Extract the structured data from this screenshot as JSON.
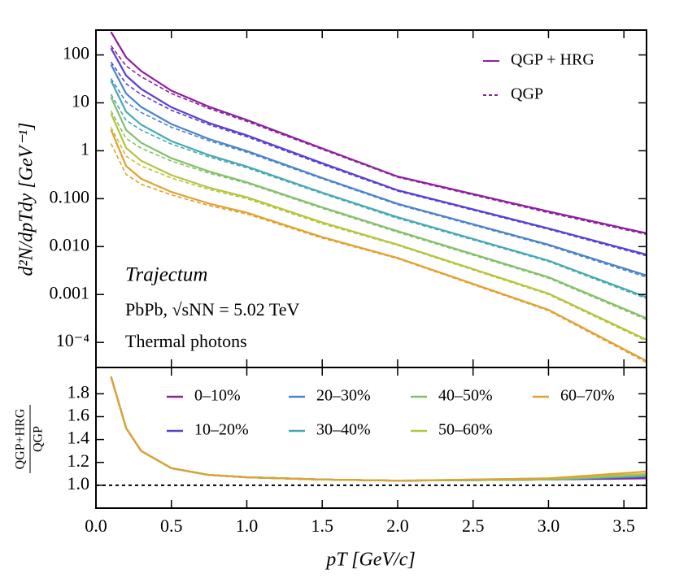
{
  "chart_data": [
    {
      "type": "line",
      "log_y": true,
      "ylabel": "d²N/dpTdy [GeV⁻¹]",
      "annotations": [
        "Trajectum",
        "PbPb, √sNN = 5.02 TeV",
        "Thermal photons"
      ],
      "style_legend": [
        "QGP + HRG",
        "QGP"
      ],
      "x": [
        0.1,
        0.2,
        0.3,
        0.5,
        0.75,
        1.0,
        1.5,
        2.0,
        3.0,
        3.65
      ],
      "xlim": [
        0,
        3.65
      ],
      "xticks": [
        0,
        0.5,
        1,
        1.5,
        2,
        2.5,
        3,
        3.5
      ],
      "show_x_tick_labels": false,
      "ylim": [
        3e-05,
        330
      ],
      "yticks": [
        {
          "value": 0.0001,
          "label": "10⁻⁴"
        },
        0.001,
        {
          "value": 0.01,
          "label": "0.010"
        },
        {
          "value": 0.1,
          "label": "0.100"
        },
        1,
        10,
        100
      ],
      "series": [
        {
          "color": "#8e1f9e",
          "values": [
            302,
            89,
            46,
            18,
            8.3,
            4.4,
            1.12,
            0.29,
            0.054,
            0.019
          ],
          "qgp_values": [
            155,
            59,
            35,
            15.7,
            7.6,
            4.1,
            1.07,
            0.28,
            0.051,
            0.018
          ]
        },
        {
          "color": "#5b3fd2",
          "values": [
            138,
            37,
            19.4,
            8.1,
            3.8,
            2.1,
            0.55,
            0.15,
            0.024,
            0.0068
          ],
          "qgp_values": [
            71,
            25,
            14.9,
            7.0,
            3.5,
            1.96,
            0.52,
            0.144,
            0.023,
            0.0064
          ]
        },
        {
          "color": "#4a84c8",
          "values": [
            63,
            15.6,
            8.2,
            3.6,
            1.76,
            0.99,
            0.27,
            0.078,
            0.011,
            0.0025
          ],
          "qgp_values": [
            32,
            10.4,
            6.3,
            3.1,
            1.61,
            0.93,
            0.26,
            0.075,
            0.0105,
            0.0023
          ]
        },
        {
          "color": "#46aab0",
          "values": [
            29,
            6.5,
            3.5,
            1.59,
            0.81,
            0.47,
            0.134,
            0.041,
            0.0051,
            0.00088
          ],
          "qgp_values": [
            15,
            4.3,
            2.7,
            1.38,
            0.74,
            0.44,
            0.128,
            0.039,
            0.0049,
            0.00082
          ]
        },
        {
          "color": "#84c06a",
          "values": [
            13.2,
            2.7,
            1.47,
            0.7,
            0.37,
            0.22,
            0.066,
            0.021,
            0.0023,
            0.00032
          ],
          "qgp_values": [
            6.8,
            1.8,
            1.13,
            0.61,
            0.34,
            0.21,
            0.063,
            0.02,
            0.0022,
            0.0003
          ]
        },
        {
          "color": "#b6c43e",
          "values": [
            6.0,
            1.15,
            0.62,
            0.31,
            0.17,
            0.107,
            0.032,
            0.011,
            0.00105,
            0.000114
          ],
          "qgp_values": [
            3.1,
            0.77,
            0.48,
            0.27,
            0.156,
            0.1,
            0.03,
            0.0106,
            0.001,
            0.000107
          ]
        },
        {
          "color": "#e0a232",
          "values": [
            2.75,
            0.48,
            0.26,
            0.138,
            0.079,
            0.051,
            0.0158,
            0.0058,
            0.00048,
            4.1e-05
          ],
          "qgp_values": [
            1.41,
            0.32,
            0.2,
            0.12,
            0.072,
            0.048,
            0.015,
            0.0056,
            0.00046,
            3.8e-05
          ]
        }
      ]
    },
    {
      "type": "line",
      "log_y": false,
      "ratio_label": {
        "numerator": "QGP+HRG",
        "denominator": "QGP"
      },
      "xlabel": "pT [GeV/c]",
      "x": [
        0.1,
        0.2,
        0.3,
        0.5,
        0.75,
        1.0,
        1.5,
        2.0,
        3.0,
        3.65
      ],
      "xlim": [
        0,
        3.65
      ],
      "xticks": [
        {
          "value": 0,
          "label": "0.0"
        },
        0.5,
        {
          "value": 1,
          "label": "1.0"
        },
        1.5,
        {
          "value": 2,
          "label": "2.0"
        },
        2.5,
        {
          "value": 3,
          "label": "3.0"
        },
        3.5
      ],
      "show_x_tick_labels": true,
      "ylim": [
        0.8,
        2.03
      ],
      "yticks": [
        {
          "value": 1,
          "label": "1.0"
        },
        1.2,
        1.4,
        1.6,
        1.8
      ],
      "hline": 1,
      "series": [
        {
          "name": "0–10%",
          "color": "#8e1f9e",
          "values": [
            1.95,
            1.5,
            1.3,
            1.15,
            1.09,
            1.07,
            1.05,
            1.04,
            1.05,
            1.06
          ]
        },
        {
          "name": "10–20%",
          "color": "#5b3fd2",
          "values": [
            1.95,
            1.5,
            1.3,
            1.15,
            1.09,
            1.07,
            1.05,
            1.04,
            1.05,
            1.07
          ]
        },
        {
          "name": "20–30%",
          "color": "#4a84c8",
          "values": [
            1.95,
            1.5,
            1.3,
            1.15,
            1.09,
            1.07,
            1.05,
            1.04,
            1.05,
            1.08
          ]
        },
        {
          "name": "30–40%",
          "color": "#46aab0",
          "values": [
            1.95,
            1.5,
            1.3,
            1.15,
            1.09,
            1.07,
            1.05,
            1.04,
            1.05,
            1.08
          ]
        },
        {
          "name": "40–50%",
          "color": "#84c06a",
          "values": [
            1.95,
            1.5,
            1.3,
            1.15,
            1.09,
            1.07,
            1.05,
            1.04,
            1.05,
            1.09
          ]
        },
        {
          "name": "50–60%",
          "color": "#b6c43e",
          "values": [
            1.95,
            1.5,
            1.3,
            1.15,
            1.09,
            1.07,
            1.05,
            1.04,
            1.06,
            1.1
          ]
        },
        {
          "name": "60–70%",
          "color": "#e0a232",
          "values": [
            1.95,
            1.5,
            1.3,
            1.15,
            1.09,
            1.07,
            1.05,
            1.04,
            1.06,
            1.12
          ]
        }
      ]
    }
  ]
}
